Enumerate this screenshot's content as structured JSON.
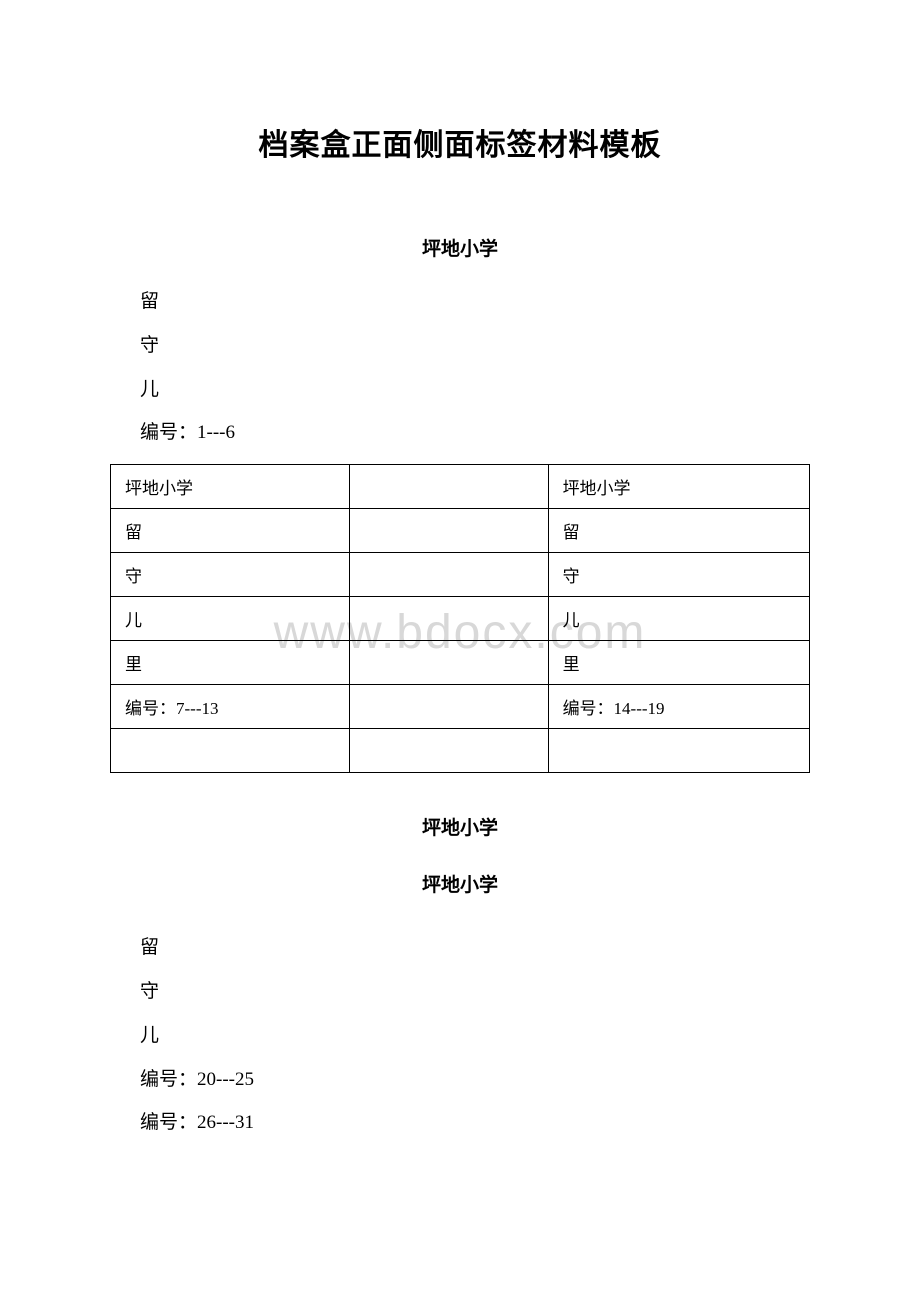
{
  "title": "档案盒正面侧面标签材料模板",
  "watermark": "www.bdocx.com",
  "section1": {
    "subtitle": "坪地小学",
    "line1": "留",
    "line2": "守",
    "line3": "儿",
    "line4": "编号：1---6"
  },
  "table": {
    "rows": [
      {
        "col1": "坪地小学",
        "col2": "",
        "col3": "坪地小学"
      },
      {
        "col1": "留",
        "col2": "",
        "col3": "留"
      },
      {
        "col1": "守",
        "col2": "",
        "col3": "守"
      },
      {
        "col1": "儿",
        "col2": "",
        "col3": "儿"
      },
      {
        "col1": "里",
        "col2": "",
        "col3": "里"
      },
      {
        "col1": "编号：7---13",
        "col2": "",
        "col3": "编号：14---19"
      },
      {
        "col1": "",
        "col2": "",
        "col3": ""
      }
    ]
  },
  "section2": {
    "subtitle1": "坪地小学",
    "subtitle2": "坪地小学",
    "line1": "留",
    "line2": "守",
    "line3": "儿",
    "line4": "编号：20---25",
    "line5": "编号：26---31"
  }
}
